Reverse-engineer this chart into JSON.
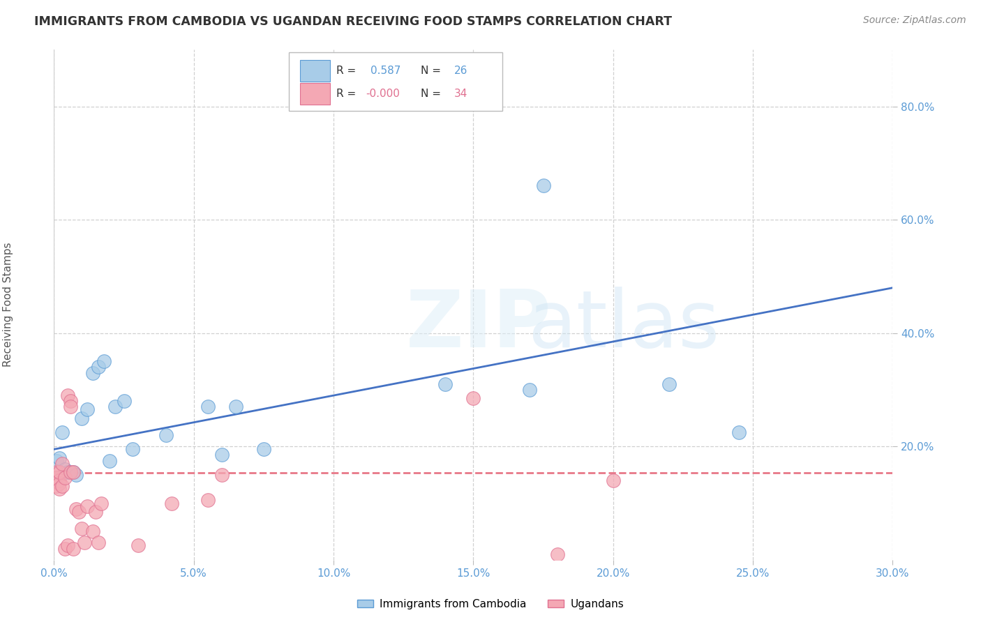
{
  "title": "IMMIGRANTS FROM CAMBODIA VS UGANDAN RECEIVING FOOD STAMPS CORRELATION CHART",
  "source": "Source: ZipAtlas.com",
  "ylabel_label": "Receiving Food Stamps",
  "legend_label1": "Immigrants from Cambodia",
  "legend_label2": "Ugandans",
  "R1": 0.587,
  "N1": 26,
  "R2": -0.0,
  "N2": 34,
  "xlim": [
    0.0,
    0.3
  ],
  "ylim": [
    0.0,
    0.9
  ],
  "xticks": [
    0.0,
    0.05,
    0.1,
    0.15,
    0.2,
    0.25,
    0.3
  ],
  "yticks": [
    0.2,
    0.4,
    0.6,
    0.8
  ],
  "color_cambodia_fill": "#a8cce8",
  "color_cambodia_edge": "#5b9bd5",
  "color_uganda_fill": "#f4a8b4",
  "color_uganda_edge": "#e07090",
  "color_line_cambodia": "#4472c4",
  "color_line_uganda": "#e87888",
  "axis_color": "#5b9bd5",
  "grid_color": "#d0d0d0",
  "background_color": "#ffffff",
  "cambodia_x": [
    0.001,
    0.002,
    0.003,
    0.004,
    0.005,
    0.007,
    0.008,
    0.01,
    0.012,
    0.014,
    0.016,
    0.018,
    0.02,
    0.022,
    0.025,
    0.028,
    0.04,
    0.055,
    0.065,
    0.075,
    0.14,
    0.17,
    0.22,
    0.245,
    0.175,
    0.06
  ],
  "cambodia_y": [
    0.175,
    0.18,
    0.225,
    0.16,
    0.155,
    0.155,
    0.15,
    0.25,
    0.265,
    0.33,
    0.34,
    0.35,
    0.175,
    0.27,
    0.28,
    0.195,
    0.22,
    0.27,
    0.27,
    0.195,
    0.31,
    0.3,
    0.31,
    0.225,
    0.66,
    0.185
  ],
  "uganda_x": [
    0.001,
    0.001,
    0.001,
    0.002,
    0.002,
    0.002,
    0.002,
    0.003,
    0.003,
    0.004,
    0.004,
    0.005,
    0.005,
    0.006,
    0.006,
    0.006,
    0.007,
    0.007,
    0.008,
    0.009,
    0.01,
    0.011,
    0.012,
    0.014,
    0.015,
    0.016,
    0.017,
    0.03,
    0.042,
    0.055,
    0.06,
    0.15,
    0.18,
    0.2
  ],
  "uganda_y": [
    0.155,
    0.145,
    0.13,
    0.14,
    0.135,
    0.155,
    0.125,
    0.13,
    0.17,
    0.145,
    0.02,
    0.025,
    0.29,
    0.155,
    0.28,
    0.27,
    0.155,
    0.02,
    0.09,
    0.085,
    0.055,
    0.03,
    0.095,
    0.05,
    0.085,
    0.03,
    0.1,
    0.025,
    0.1,
    0.105,
    0.15,
    0.285,
    0.01,
    0.14
  ],
  "trendline_cambodia_x0": 0.0,
  "trendline_cambodia_x1": 0.3,
  "trendline_cambodia_y0": 0.195,
  "trendline_cambodia_y1": 0.48,
  "trendline_uganda_y": 0.153,
  "title_fontsize": 12.5,
  "tick_fontsize": 11,
  "label_fontsize": 11,
  "source_fontsize": 10
}
